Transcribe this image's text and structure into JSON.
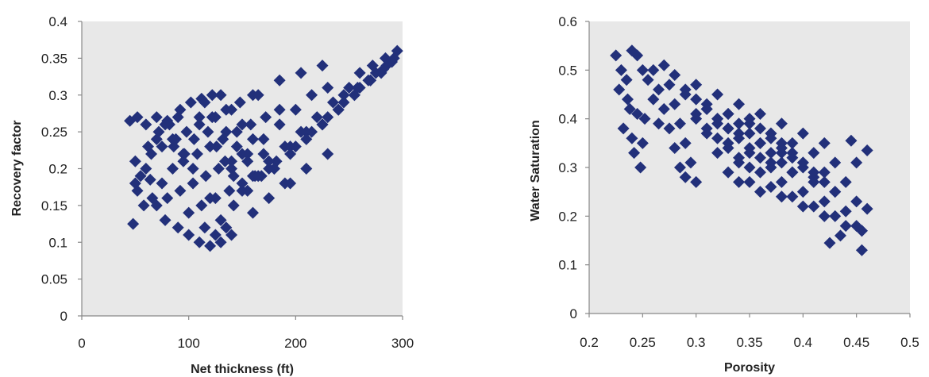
{
  "chart_data": [
    {
      "type": "scatter",
      "xlabel": "Net thickness (ft)",
      "ylabel": "Recovery factor",
      "xlim": [
        0,
        300
      ],
      "ylim": [
        0,
        0.4
      ],
      "xticks": [
        "0",
        "100",
        "200",
        "300"
      ],
      "yticks": [
        "0",
        "0.05",
        "0.1",
        "0.15",
        "0.2",
        "0.25",
        "0.3",
        "0.35",
        "0.4"
      ],
      "grid": false,
      "legend": "none",
      "marker": "diamond",
      "marker_color": "#22307a",
      "plot_background": "#e8e8e8",
      "x": [
        45,
        52,
        60,
        70,
        80,
        90,
        50,
        55,
        60,
        65,
        70,
        48,
        58,
        66,
        75,
        85,
        95,
        105,
        50,
        62,
        72,
        82,
        92,
        102,
        112,
        122,
        52,
        64,
        78,
        90,
        100,
        110,
        120,
        130,
        140,
        70,
        80,
        92,
        104,
        116,
        128,
        140,
        150,
        75,
        85,
        98,
        110,
        122,
        135,
        148,
        160,
        100,
        112,
        125,
        138,
        150,
        162,
        175,
        95,
        108,
        120,
        132,
        145,
        158,
        172,
        185,
        130,
        142,
        155,
        168,
        182,
        195,
        210,
        140,
        155,
        170,
        185,
        200,
        215,
        230,
        160,
        175,
        190,
        205,
        220,
        235,
        250,
        180,
        195,
        210,
        225,
        240,
        255,
        270,
        200,
        215,
        230,
        245,
        260,
        275,
        285,
        225,
        240,
        255,
        268,
        280,
        290,
        245,
        258,
        270,
        282,
        292,
        260,
        272,
        284,
        295,
        110,
        118,
        126,
        134,
        142,
        150,
        115,
        125,
        135,
        145,
        155,
        165,
        130,
        140,
        150,
        160,
        170,
        180,
        190,
        88,
        96,
        104,
        78,
        86,
        115,
        125,
        135,
        160,
        175,
        195,
        210,
        230,
        120,
        165,
        185,
        205,
        225
      ],
      "y": [
        0.265,
        0.27,
        0.26,
        0.27,
        0.265,
        0.27,
        0.18,
        0.19,
        0.2,
        0.22,
        0.24,
        0.125,
        0.15,
        0.16,
        0.18,
        0.2,
        0.22,
        0.24,
        0.21,
        0.23,
        0.25,
        0.26,
        0.28,
        0.29,
        0.295,
        0.3,
        0.17,
        0.185,
        0.13,
        0.12,
        0.11,
        0.1,
        0.095,
        0.1,
        0.11,
        0.15,
        0.16,
        0.17,
        0.18,
        0.19,
        0.2,
        0.21,
        0.22,
        0.23,
        0.24,
        0.25,
        0.26,
        0.27,
        0.28,
        0.29,
        0.3,
        0.14,
        0.15,
        0.16,
        0.17,
        0.18,
        0.19,
        0.2,
        0.21,
        0.22,
        0.23,
        0.24,
        0.25,
        0.26,
        0.27,
        0.28,
        0.13,
        0.15,
        0.17,
        0.19,
        0.21,
        0.23,
        0.25,
        0.2,
        0.22,
        0.24,
        0.26,
        0.28,
        0.3,
        0.31,
        0.19,
        0.21,
        0.23,
        0.25,
        0.27,
        0.29,
        0.31,
        0.2,
        0.22,
        0.24,
        0.26,
        0.28,
        0.3,
        0.32,
        0.23,
        0.25,
        0.27,
        0.29,
        0.31,
        0.33,
        0.34,
        0.26,
        0.28,
        0.3,
        0.32,
        0.33,
        0.345,
        0.3,
        0.31,
        0.32,
        0.335,
        0.35,
        0.33,
        0.34,
        0.35,
        0.36,
        0.27,
        0.25,
        0.23,
        0.21,
        0.19,
        0.17,
        0.29,
        0.27,
        0.25,
        0.23,
        0.21,
        0.19,
        0.3,
        0.28,
        0.26,
        0.24,
        0.22,
        0.2,
        0.18,
        0.24,
        0.22,
        0.2,
        0.26,
        0.23,
        0.12,
        0.11,
        0.12,
        0.14,
        0.16,
        0.18,
        0.2,
        0.22,
        0.16,
        0.3,
        0.32,
        0.33,
        0.34
      ]
    },
    {
      "type": "scatter",
      "xlabel": "Porosity",
      "ylabel": "Water Saturation",
      "xlim": [
        0.2,
        0.5
      ],
      "ylim": [
        0,
        0.6
      ],
      "xticks": [
        "0.2",
        "0.25",
        "0.3",
        "0.35",
        "0.4",
        "0.45",
        "0.5"
      ],
      "yticks": [
        "0",
        "0.1",
        "0.2",
        "0.3",
        "0.4",
        "0.5",
        "0.6"
      ],
      "grid": false,
      "legend": "none",
      "marker": "diamond",
      "marker_color": "#22307a",
      "plot_background": "#e8e8e8",
      "x": [
        0.225,
        0.23,
        0.235,
        0.24,
        0.245,
        0.25,
        0.228,
        0.232,
        0.238,
        0.242,
        0.248,
        0.252,
        0.236,
        0.24,
        0.245,
        0.25,
        0.255,
        0.26,
        0.265,
        0.26,
        0.265,
        0.27,
        0.275,
        0.28,
        0.285,
        0.29,
        0.27,
        0.275,
        0.28,
        0.285,
        0.29,
        0.295,
        0.3,
        0.28,
        0.29,
        0.3,
        0.31,
        0.32,
        0.33,
        0.34,
        0.3,
        0.31,
        0.32,
        0.33,
        0.34,
        0.35,
        0.36,
        0.32,
        0.33,
        0.34,
        0.35,
        0.36,
        0.37,
        0.38,
        0.34,
        0.35,
        0.36,
        0.37,
        0.38,
        0.39,
        0.4,
        0.36,
        0.37,
        0.38,
        0.39,
        0.4,
        0.41,
        0.42,
        0.38,
        0.39,
        0.4,
        0.41,
        0.42,
        0.43,
        0.44,
        0.4,
        0.41,
        0.42,
        0.43,
        0.44,
        0.45,
        0.455,
        0.42,
        0.43,
        0.44,
        0.45,
        0.455,
        0.46,
        0.29,
        0.3,
        0.31,
        0.32,
        0.33,
        0.3,
        0.31,
        0.32,
        0.33,
        0.34,
        0.35,
        0.31,
        0.32,
        0.33,
        0.34,
        0.35,
        0.36,
        0.37,
        0.33,
        0.34,
        0.35,
        0.36,
        0.37,
        0.38,
        0.39,
        0.35,
        0.36,
        0.37,
        0.38,
        0.39,
        0.4,
        0.41,
        0.37,
        0.38,
        0.39,
        0.4,
        0.41,
        0.42,
        0.43,
        0.445,
        0.45,
        0.46,
        0.455,
        0.435,
        0.425
      ],
      "y": [
        0.53,
        0.5,
        0.48,
        0.54,
        0.53,
        0.5,
        0.46,
        0.38,
        0.42,
        0.33,
        0.3,
        0.4,
        0.44,
        0.36,
        0.41,
        0.35,
        0.48,
        0.44,
        0.39,
        0.5,
        0.46,
        0.42,
        0.38,
        0.34,
        0.3,
        0.28,
        0.51,
        0.47,
        0.43,
        0.39,
        0.35,
        0.31,
        0.27,
        0.49,
        0.45,
        0.41,
        0.37,
        0.33,
        0.29,
        0.27,
        0.47,
        0.43,
        0.39,
        0.35,
        0.31,
        0.27,
        0.25,
        0.45,
        0.41,
        0.37,
        0.33,
        0.29,
        0.26,
        0.24,
        0.43,
        0.39,
        0.35,
        0.31,
        0.27,
        0.24,
        0.22,
        0.41,
        0.37,
        0.33,
        0.29,
        0.25,
        0.22,
        0.2,
        0.39,
        0.35,
        0.31,
        0.27,
        0.23,
        0.2,
        0.18,
        0.37,
        0.33,
        0.29,
        0.25,
        0.21,
        0.18,
        0.13,
        0.35,
        0.31,
        0.27,
        0.23,
        0.17,
        0.335,
        0.46,
        0.44,
        0.42,
        0.4,
        0.38,
        0.4,
        0.38,
        0.36,
        0.34,
        0.32,
        0.3,
        0.42,
        0.4,
        0.38,
        0.36,
        0.34,
        0.32,
        0.3,
        0.41,
        0.39,
        0.37,
        0.35,
        0.33,
        0.31,
        0.29,
        0.4,
        0.38,
        0.36,
        0.34,
        0.32,
        0.3,
        0.28,
        0.37,
        0.35,
        0.33,
        0.31,
        0.29,
        0.27,
        0.25,
        0.355,
        0.31,
        0.215,
        0.17,
        0.16,
        0.145
      ]
    }
  ]
}
